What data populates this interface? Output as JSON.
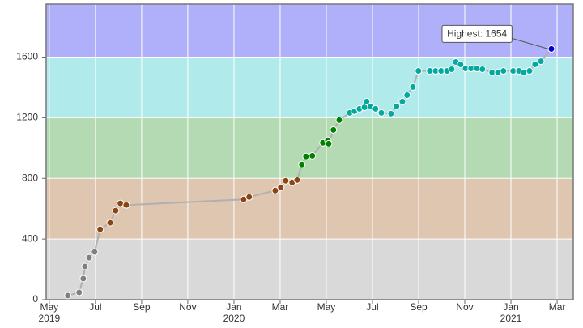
{
  "chart_data": {
    "type": "line",
    "annotation": "Highest: 1654",
    "x": [
      2019.4,
      2019.441,
      2019.456,
      2019.462,
      2019.477,
      2019.497,
      2019.517,
      2019.553,
      2019.573,
      2019.59,
      2019.611,
      2020.035,
      2020.055,
      2020.149,
      2020.169,
      2020.187,
      2020.21,
      2020.228,
      2020.245,
      2020.26,
      2020.283,
      2020.321,
      2020.339,
      2020.342,
      2020.359,
      2020.38,
      2020.418,
      2020.435,
      2020.453,
      2020.471,
      2020.479,
      2020.494,
      2020.511,
      2020.532,
      2020.567,
      2020.587,
      2020.608,
      2020.625,
      2020.646,
      2020.666,
      2020.707,
      2020.728,
      2020.748,
      2020.769,
      2020.786,
      2020.801,
      2020.818,
      2020.836,
      2020.856,
      2020.877,
      2020.897,
      2020.932,
      2020.953,
      2020.973,
      2021.008,
      2021.029,
      2021.047,
      2021.067,
      2021.087,
      2021.108,
      2021.146
    ],
    "series": [
      {
        "color": "#b0b0b0",
        "values": [
          27,
          48,
          139,
          219,
          277,
          315,
          464,
          507,
          587,
          635,
          624,
          661,
          677,
          720,
          741,
          784,
          773,
          789,
          891,
          944,
          949,
          1035,
          1051,
          1029,
          1120,
          1184,
          1232,
          1243,
          1259,
          1269,
          1307,
          1275,
          1259,
          1232,
          1227,
          1275,
          1307,
          1349,
          1403,
          1509,
          1509,
          1509,
          1509,
          1509,
          1520,
          1568,
          1552,
          1525,
          1525,
          1525,
          1520,
          1499,
          1499,
          1509,
          1509,
          1509,
          1499,
          1509,
          1552,
          1573,
          1654
        ]
      }
    ],
    "bands": [
      {
        "from": 0,
        "to": 400,
        "color": "#d9d9d9",
        "point_color": "#808080"
      },
      {
        "from": 400,
        "to": 800,
        "color": "#dfc6b0",
        "point_color": "#8b4513"
      },
      {
        "from": 800,
        "to": 1200,
        "color": "#b3dab3",
        "point_color": "#008000"
      },
      {
        "from": 1200,
        "to": 1600,
        "color": "#b1eaea",
        "point_color": "#03a89e"
      },
      {
        "from": 1600,
        "to": 1950,
        "color": "#b0b0fa",
        "point_color": "#0000cc"
      }
    ],
    "xlim": [
      2019.322,
      2021.225
    ],
    "ylim": [
      0,
      1950
    ],
    "yticks": [
      0,
      400,
      800,
      1200,
      1600
    ],
    "xticks": [
      {
        "value": 2019.3333,
        "label": "May\n2019"
      },
      {
        "value": 2019.5,
        "label": "Jul"
      },
      {
        "value": 2019.6667,
        "label": "Sep"
      },
      {
        "value": 2019.8333,
        "label": "Nov"
      },
      {
        "value": 2020.0,
        "label": "Jan\n2020"
      },
      {
        "value": 2020.1667,
        "label": "Mar"
      },
      {
        "value": 2020.3333,
        "label": "May"
      },
      {
        "value": 2020.5,
        "label": "Jul"
      },
      {
        "value": 2020.6667,
        "label": "Sep"
      },
      {
        "value": 2020.8333,
        "label": "Nov"
      },
      {
        "value": 2021.0,
        "label": "Jan\n2021"
      },
      {
        "value": 2021.1667,
        "label": "Mar"
      }
    ],
    "grid": true
  }
}
